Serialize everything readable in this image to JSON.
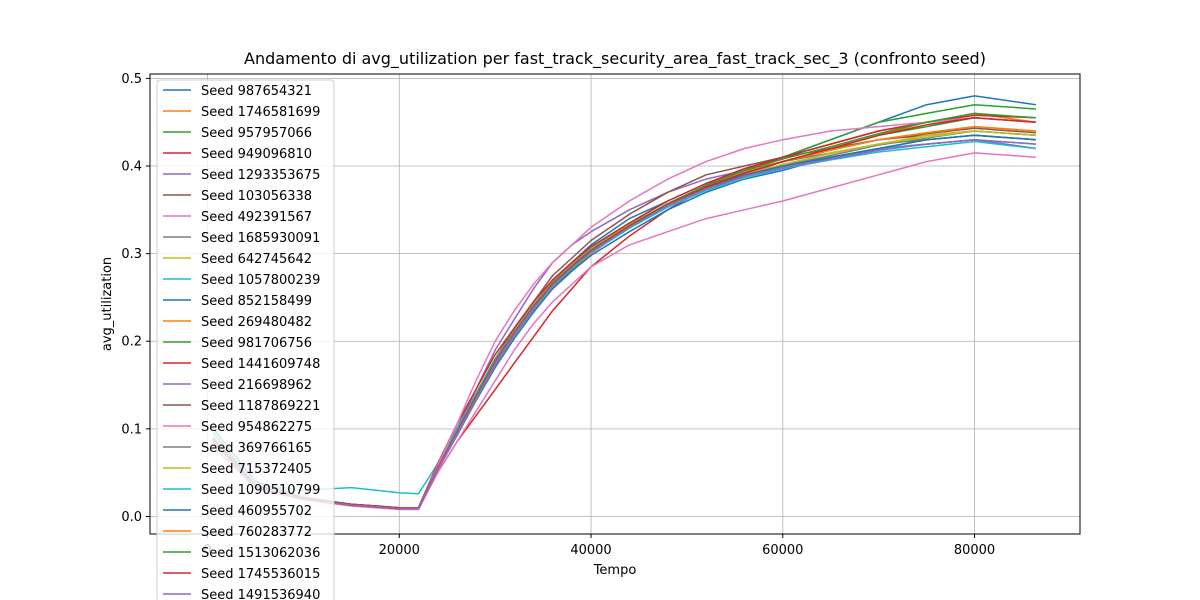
{
  "chart_data": {
    "type": "line",
    "title": "Andamento di avg_utilization per fast_track_security_area_fast_track_sec_3 (confronto seed)",
    "xlabel": "Tempo",
    "ylabel": "avg_utilization",
    "xlim": [
      -6000,
      91000
    ],
    "ylim": [
      -0.02,
      0.505
    ],
    "xticks": [
      0,
      20000,
      40000,
      60000,
      80000
    ],
    "xtick_labels": [
      "0",
      "20000",
      "40000",
      "60000",
      "80000"
    ],
    "yticks": [
      0.0,
      0.1,
      0.2,
      0.3,
      0.4,
      0.5
    ],
    "ytick_labels": [
      "0.0",
      "0.1",
      "0.2",
      "0.3",
      "0.4",
      "0.5"
    ],
    "grid": true,
    "legend_position": "upper-left",
    "x": [
      600,
      5000,
      10000,
      15000,
      20000,
      22000,
      24000,
      26000,
      28000,
      30000,
      32000,
      34000,
      36000,
      38000,
      40000,
      44000,
      48000,
      52000,
      56000,
      60000,
      65000,
      70000,
      75000,
      80000,
      86400
    ],
    "series": [
      {
        "name": "Seed 987654321",
        "color": "#1f77b4",
        "values": [
          0.1,
          0.04,
          0.022,
          0.014,
          0.01,
          0.01,
          0.06,
          0.1,
          0.14,
          0.18,
          0.21,
          0.24,
          0.27,
          0.29,
          0.31,
          0.34,
          0.36,
          0.38,
          0.395,
          0.41,
          0.43,
          0.45,
          0.47,
          0.48,
          0.47
        ]
      },
      {
        "name": "Seed 1746581699",
        "color": "#ff7f0e",
        "values": [
          0.09,
          0.035,
          0.02,
          0.013,
          0.009,
          0.009,
          0.055,
          0.095,
          0.135,
          0.175,
          0.205,
          0.235,
          0.26,
          0.28,
          0.3,
          0.33,
          0.355,
          0.375,
          0.39,
          0.405,
          0.42,
          0.435,
          0.45,
          0.46,
          0.45
        ]
      },
      {
        "name": "Seed 957957066",
        "color": "#2ca02c",
        "values": [
          0.095,
          0.036,
          0.021,
          0.014,
          0.01,
          0.01,
          0.057,
          0.097,
          0.137,
          0.177,
          0.207,
          0.237,
          0.262,
          0.282,
          0.302,
          0.332,
          0.357,
          0.377,
          0.395,
          0.41,
          0.43,
          0.45,
          0.46,
          0.47,
          0.465
        ]
      },
      {
        "name": "Seed 949096810",
        "color": "#d62728",
        "values": [
          0.085,
          0.033,
          0.02,
          0.013,
          0.009,
          0.009,
          0.05,
          0.085,
          0.115,
          0.145,
          0.175,
          0.205,
          0.235,
          0.26,
          0.285,
          0.32,
          0.35,
          0.375,
          0.395,
          0.41,
          0.425,
          0.44,
          0.45,
          0.455,
          0.45
        ]
      },
      {
        "name": "Seed 1293353675",
        "color": "#9467bd",
        "values": [
          0.09,
          0.034,
          0.02,
          0.013,
          0.009,
          0.009,
          0.056,
          0.1,
          0.145,
          0.19,
          0.225,
          0.26,
          0.29,
          0.31,
          0.325,
          0.35,
          0.37,
          0.385,
          0.395,
          0.4,
          0.41,
          0.42,
          0.425,
          0.43,
          0.42
        ]
      },
      {
        "name": "Seed 103056338",
        "color": "#8c564b",
        "values": [
          0.088,
          0.034,
          0.02,
          0.013,
          0.009,
          0.009,
          0.055,
          0.095,
          0.14,
          0.18,
          0.215,
          0.245,
          0.275,
          0.295,
          0.315,
          0.345,
          0.37,
          0.39,
          0.4,
          0.41,
          0.42,
          0.43,
          0.435,
          0.44,
          0.435
        ]
      },
      {
        "name": "Seed 492391567",
        "color": "#e377c2",
        "values": [
          0.08,
          0.032,
          0.019,
          0.012,
          0.008,
          0.008,
          0.05,
          0.085,
          0.12,
          0.155,
          0.19,
          0.22,
          0.245,
          0.265,
          0.285,
          0.31,
          0.325,
          0.34,
          0.35,
          0.36,
          0.375,
          0.39,
          0.405,
          0.415,
          0.41
        ]
      },
      {
        "name": "Seed 1685930091",
        "color": "#7f7f7f",
        "values": [
          0.087,
          0.034,
          0.02,
          0.013,
          0.009,
          0.009,
          0.054,
          0.094,
          0.134,
          0.172,
          0.205,
          0.235,
          0.262,
          0.284,
          0.305,
          0.335,
          0.36,
          0.38,
          0.395,
          0.405,
          0.415,
          0.425,
          0.43,
          0.435,
          0.43
        ]
      },
      {
        "name": "Seed 642745642",
        "color": "#bcbd22",
        "values": [
          0.089,
          0.035,
          0.021,
          0.013,
          0.009,
          0.009,
          0.055,
          0.095,
          0.137,
          0.177,
          0.21,
          0.24,
          0.265,
          0.285,
          0.303,
          0.33,
          0.355,
          0.375,
          0.39,
          0.4,
          0.415,
          0.425,
          0.435,
          0.44,
          0.435
        ]
      },
      {
        "name": "Seed 1057800239",
        "color": "#17becf",
        "values": [
          0.09,
          0.036,
          0.03,
          0.033,
          0.027,
          0.026,
          0.06,
          0.098,
          0.14,
          0.18,
          0.212,
          0.242,
          0.268,
          0.288,
          0.306,
          0.334,
          0.356,
          0.375,
          0.39,
          0.4,
          0.41,
          0.42,
          0.425,
          0.43,
          0.425
        ]
      },
      {
        "name": "Seed 852158499",
        "color": "#1f77b4",
        "values": [
          0.086,
          0.033,
          0.02,
          0.013,
          0.009,
          0.009,
          0.053,
          0.092,
          0.132,
          0.17,
          0.203,
          0.233,
          0.26,
          0.28,
          0.298,
          0.325,
          0.35,
          0.37,
          0.385,
          0.395,
          0.41,
          0.42,
          0.43,
          0.435,
          0.43
        ]
      },
      {
        "name": "Seed 269480482",
        "color": "#ff7f0e",
        "values": [
          0.088,
          0.034,
          0.02,
          0.013,
          0.009,
          0.009,
          0.055,
          0.096,
          0.138,
          0.178,
          0.21,
          0.24,
          0.266,
          0.286,
          0.304,
          0.332,
          0.356,
          0.376,
          0.392,
          0.405,
          0.418,
          0.43,
          0.438,
          0.445,
          0.44
        ]
      },
      {
        "name": "Seed 981706756",
        "color": "#2ca02c",
        "values": [
          0.087,
          0.034,
          0.02,
          0.013,
          0.009,
          0.009,
          0.054,
          0.094,
          0.136,
          0.176,
          0.208,
          0.238,
          0.264,
          0.284,
          0.302,
          0.33,
          0.355,
          0.375,
          0.392,
          0.405,
          0.42,
          0.435,
          0.445,
          0.455,
          0.45
        ]
      },
      {
        "name": "Seed 1441609748",
        "color": "#d62728",
        "values": [
          0.089,
          0.035,
          0.021,
          0.014,
          0.01,
          0.01,
          0.06,
          0.105,
          0.145,
          0.185,
          0.215,
          0.245,
          0.27,
          0.29,
          0.308,
          0.335,
          0.36,
          0.38,
          0.397,
          0.41,
          0.425,
          0.44,
          0.45,
          0.458,
          0.455
        ]
      },
      {
        "name": "Seed 216698962",
        "color": "#9467bd",
        "values": [
          0.085,
          0.033,
          0.02,
          0.013,
          0.009,
          0.009,
          0.053,
          0.092,
          0.133,
          0.172,
          0.205,
          0.235,
          0.262,
          0.283,
          0.302,
          0.33,
          0.355,
          0.374,
          0.388,
          0.398,
          0.408,
          0.418,
          0.425,
          0.43,
          0.42
        ]
      },
      {
        "name": "Seed 1187869221",
        "color": "#8c564b",
        "values": [
          0.086,
          0.033,
          0.02,
          0.013,
          0.009,
          0.009,
          0.054,
          0.094,
          0.135,
          0.175,
          0.207,
          0.237,
          0.263,
          0.284,
          0.303,
          0.332,
          0.357,
          0.377,
          0.393,
          0.405,
          0.418,
          0.43,
          0.437,
          0.443,
          0.438
        ]
      },
      {
        "name": "Seed 954862275",
        "color": "#e377c2",
        "values": [
          0.087,
          0.034,
          0.02,
          0.013,
          0.009,
          0.009,
          0.058,
          0.105,
          0.155,
          0.2,
          0.235,
          0.265,
          0.29,
          0.31,
          0.33,
          0.36,
          0.385,
          0.405,
          0.42,
          0.43,
          0.44,
          0.445,
          0.45,
          0.455,
          0.45
        ]
      },
      {
        "name": "Seed 369766165",
        "color": "#7f7f7f",
        "values": [
          0.088,
          0.034,
          0.02,
          0.013,
          0.009,
          0.009,
          0.054,
          0.093,
          0.134,
          0.174,
          0.206,
          0.236,
          0.262,
          0.283,
          0.302,
          0.33,
          0.354,
          0.373,
          0.388,
          0.4,
          0.412,
          0.424,
          0.432,
          0.44,
          0.435
        ]
      },
      {
        "name": "Seed 715372405",
        "color": "#bcbd22",
        "values": [
          0.087,
          0.034,
          0.02,
          0.013,
          0.009,
          0.009,
          0.055,
          0.095,
          0.136,
          0.176,
          0.209,
          0.239,
          0.265,
          0.285,
          0.303,
          0.331,
          0.355,
          0.375,
          0.39,
          0.402,
          0.414,
          0.425,
          0.433,
          0.44,
          0.435
        ]
      },
      {
        "name": "Seed 1090510799",
        "color": "#17becf",
        "values": [
          0.086,
          0.033,
          0.02,
          0.013,
          0.009,
          0.009,
          0.054,
          0.094,
          0.135,
          0.175,
          0.207,
          0.237,
          0.263,
          0.283,
          0.301,
          0.329,
          0.353,
          0.372,
          0.386,
          0.397,
          0.407,
          0.416,
          0.422,
          0.428,
          0.42
        ]
      },
      {
        "name": "Seed 460955702",
        "color": "#1f77b4",
        "values": [
          0.088,
          0.034,
          0.02,
          0.013,
          0.009,
          0.009,
          0.055,
          0.095,
          0.137,
          0.177,
          0.21,
          0.24,
          0.266,
          0.286,
          0.304,
          0.332,
          0.356,
          0.375,
          0.39,
          0.4,
          0.41,
          0.42,
          0.43,
          0.435,
          0.43
        ]
      },
      {
        "name": "Seed 760283772",
        "color": "#ff7f0e",
        "values": [
          0.087,
          0.034,
          0.02,
          0.013,
          0.009,
          0.009,
          0.055,
          0.096,
          0.138,
          0.178,
          0.211,
          0.241,
          0.267,
          0.287,
          0.305,
          0.333,
          0.357,
          0.377,
          0.393,
          0.405,
          0.418,
          0.43,
          0.438,
          0.445,
          0.44
        ]
      },
      {
        "name": "Seed 1513062036",
        "color": "#2ca02c",
        "values": [
          0.088,
          0.034,
          0.02,
          0.013,
          0.009,
          0.009,
          0.055,
          0.096,
          0.138,
          0.178,
          0.21,
          0.24,
          0.266,
          0.286,
          0.304,
          0.332,
          0.357,
          0.378,
          0.395,
          0.408,
          0.422,
          0.437,
          0.45,
          0.46,
          0.455
        ]
      },
      {
        "name": "Seed 1745536015",
        "color": "#d62728",
        "values": [
          0.087,
          0.034,
          0.02,
          0.013,
          0.009,
          0.009,
          0.055,
          0.095,
          0.136,
          0.176,
          0.209,
          0.239,
          0.265,
          0.285,
          0.303,
          0.331,
          0.356,
          0.376,
          0.392,
          0.405,
          0.42,
          0.435,
          0.447,
          0.455,
          0.45
        ]
      },
      {
        "name": "Seed 1491536940",
        "color": "#9467bd",
        "values": [
          0.086,
          0.033,
          0.02,
          0.013,
          0.009,
          0.009,
          0.054,
          0.094,
          0.135,
          0.175,
          0.208,
          0.238,
          0.264,
          0.284,
          0.302,
          0.33,
          0.355,
          0.374,
          0.388,
          0.398,
          0.408,
          0.418,
          0.425,
          0.43,
          0.425
        ]
      }
    ]
  }
}
